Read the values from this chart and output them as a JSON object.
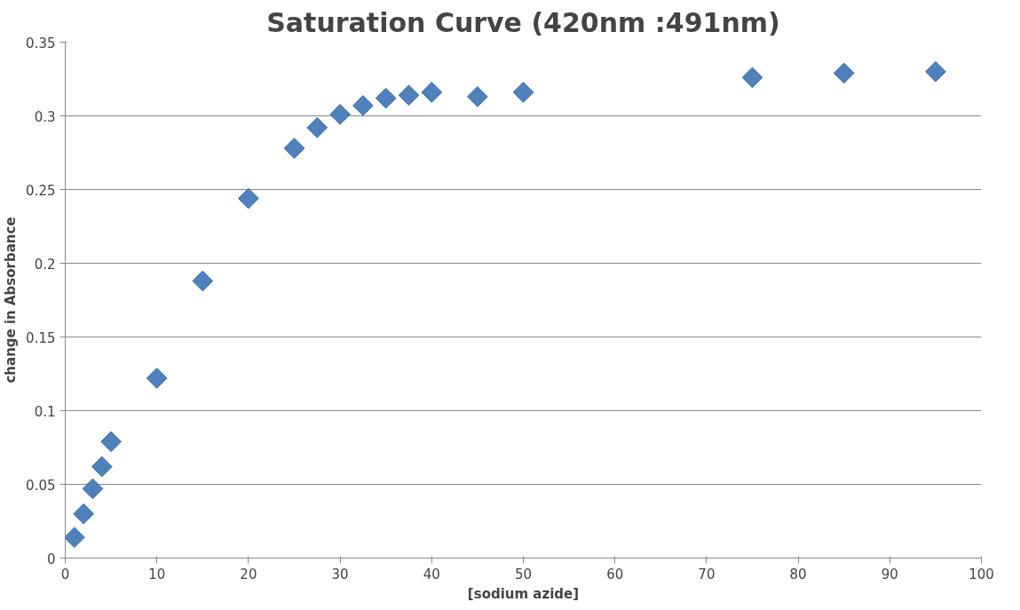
{
  "chart_data": {
    "type": "scatter",
    "title": "Saturation Curve (420nm :491nm)",
    "xlabel": "[sodium azide]",
    "ylabel": "change in Absorbance",
    "x": [
      1,
      2,
      3,
      4,
      5,
      10,
      15,
      20,
      25,
      27.5,
      30,
      32.5,
      35,
      37.5,
      40,
      45,
      50,
      75,
      85,
      95
    ],
    "series": [
      {
        "color": "#4f81bd",
        "values": [
          0.014,
          0.03,
          0.047,
          0.062,
          0.079,
          0.122,
          0.188,
          0.244,
          0.278,
          0.292,
          0.301,
          0.307,
          0.312,
          0.314,
          0.316,
          0.313,
          0.316,
          0.326,
          0.329,
          0.33
        ]
      }
    ],
    "xlim": [
      0,
      100
    ],
    "xticks": [
      0,
      10,
      20,
      30,
      40,
      50,
      60,
      70,
      80,
      90,
      100
    ],
    "ylim": [
      0,
      0.35
    ],
    "yticks": [
      0,
      {
        "value": 0.05,
        "label": "0.05"
      },
      {
        "value": 0.1,
        "label": "0.1"
      },
      {
        "value": 0.15,
        "label": "0.15"
      },
      {
        "value": 0.2,
        "label": "0.2"
      },
      {
        "value": 0.25,
        "label": "0.25"
      },
      {
        "value": 0.3,
        "label": "0.3"
      },
      {
        "value": 0.35,
        "label": "0.35"
      }
    ],
    "grid": "y",
    "marker": "diamond"
  }
}
